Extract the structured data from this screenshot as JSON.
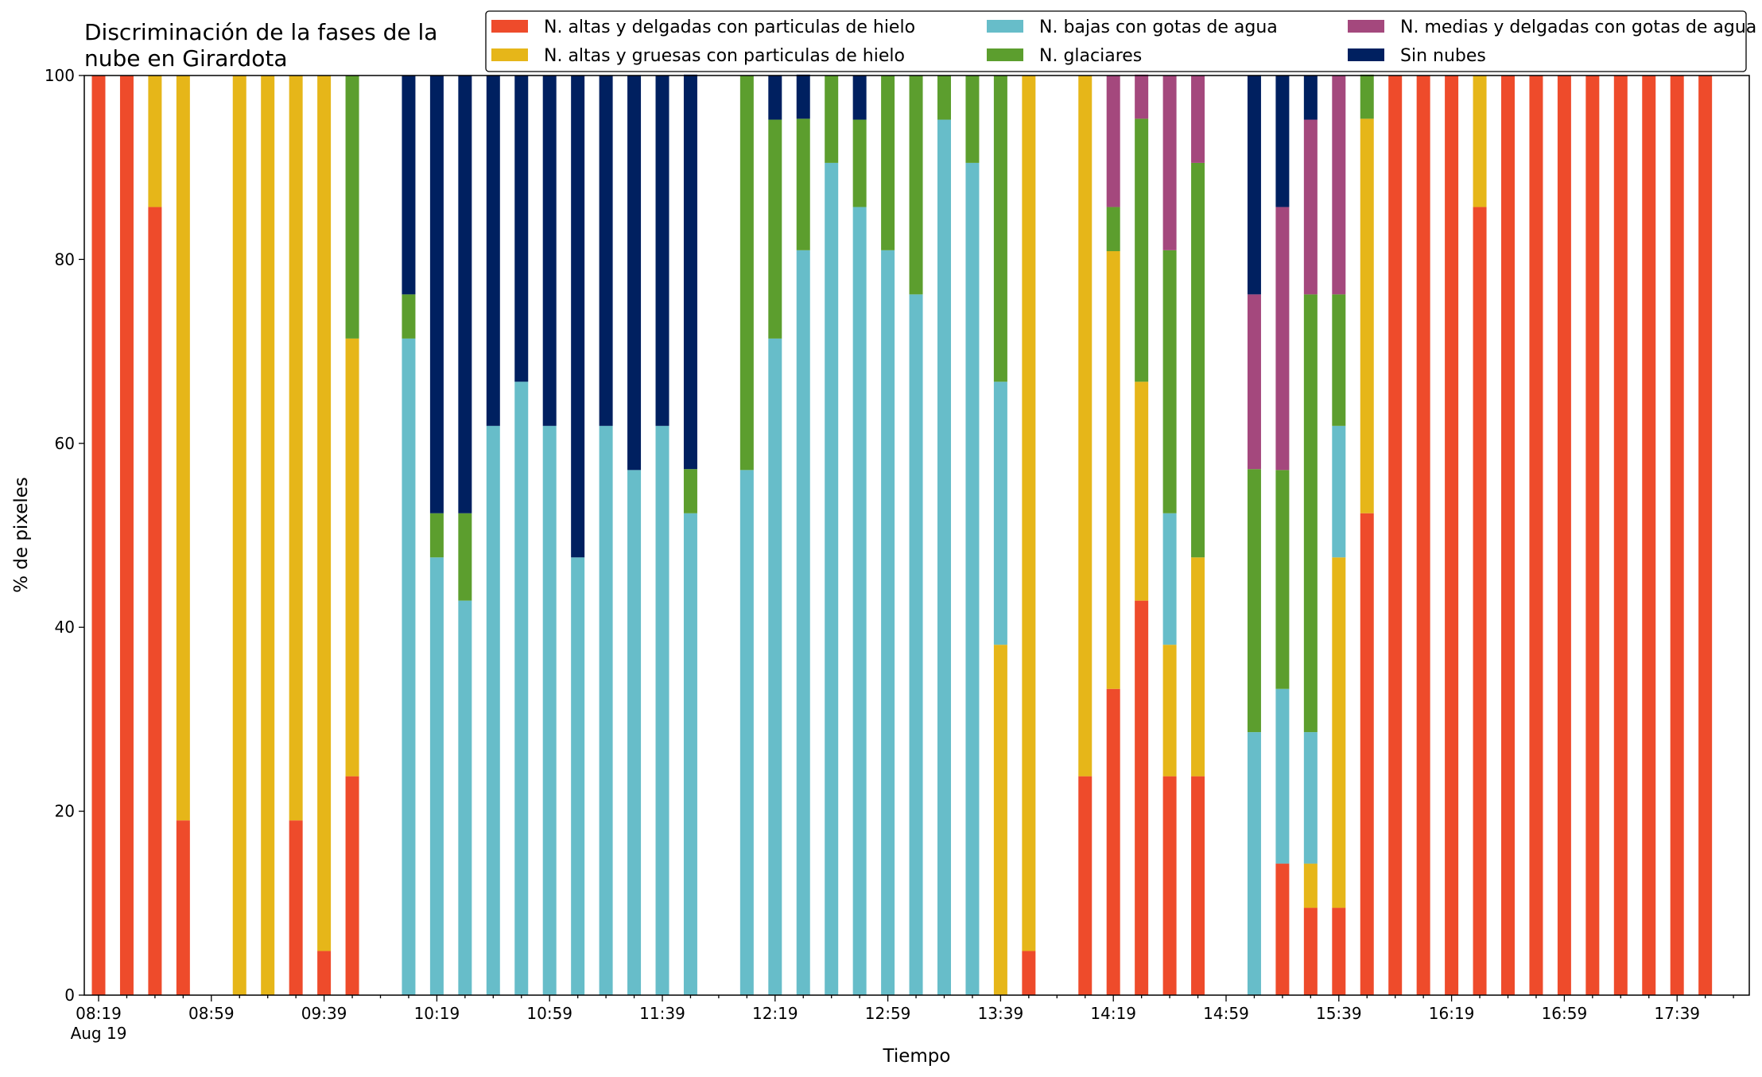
{
  "chart_data": {
    "type": "bar",
    "stacked": true,
    "title_lines": [
      "Discriminación de la fases de la",
      "nube en Girardota"
    ],
    "xlabel": "Tiempo",
    "ylabel": "% de pixeles",
    "ylim": [
      0,
      100
    ],
    "y_ticks": [
      "0",
      "20",
      "40",
      "60",
      "80",
      "100"
    ],
    "x_ticks": [
      "08:19",
      "08:59",
      "09:39",
      "10:19",
      "10:59",
      "11:39",
      "12:19",
      "12:59",
      "13:39",
      "14:19",
      "14:59",
      "15:39",
      "16:19",
      "16:59",
      "17:39"
    ],
    "x_tick_sublabel": "Aug 19",
    "slot_count": 58,
    "grid": false,
    "legend_position": "top",
    "series": [
      {
        "name": "N. altas y delgadas con particulas de hielo",
        "color": "#ee4b2b"
      },
      {
        "name": "N. altas y gruesas con particulas de hielo",
        "color": "#e6b619"
      },
      {
        "name": "N. bajas con gotas de agua",
        "color": "#67bdc9"
      },
      {
        "name": "N. glaciares",
        "color": "#5c9e2e"
      },
      {
        "name": "N. medias y delgadas con gotas de agua",
        "color": "#a4487d"
      },
      {
        "name": "Sin nubes",
        "color": "#002060"
      }
    ],
    "bars": [
      {
        "slot": 0,
        "values": [
          100,
          0,
          0,
          0,
          0,
          0
        ]
      },
      {
        "slot": 1,
        "values": [
          100,
          0,
          0,
          0,
          0,
          0
        ]
      },
      {
        "slot": 2,
        "values": [
          85.7,
          14.3,
          0,
          0,
          0,
          0
        ]
      },
      {
        "slot": 3,
        "values": [
          19,
          81,
          0,
          0,
          0,
          0
        ]
      },
      {
        "slot": 5,
        "values": [
          0,
          100,
          0,
          0,
          0,
          0
        ]
      },
      {
        "slot": 6,
        "values": [
          0,
          100,
          0,
          0,
          0,
          0
        ]
      },
      {
        "slot": 7,
        "values": [
          19,
          81,
          0,
          0,
          0,
          0
        ]
      },
      {
        "slot": 8,
        "values": [
          4.8,
          95.2,
          0,
          0,
          0,
          0
        ]
      },
      {
        "slot": 9,
        "values": [
          23.8,
          47.6,
          0,
          28.6,
          0,
          0
        ]
      },
      {
        "slot": 11,
        "values": [
          0,
          0,
          71.4,
          4.8,
          0,
          23.8
        ]
      },
      {
        "slot": 12,
        "values": [
          0,
          0,
          47.6,
          4.8,
          0,
          47.6
        ]
      },
      {
        "slot": 13,
        "values": [
          0,
          0,
          42.9,
          9.5,
          0,
          47.6
        ]
      },
      {
        "slot": 14,
        "values": [
          0,
          0,
          61.9,
          0,
          0,
          38.1
        ]
      },
      {
        "slot": 15,
        "values": [
          0,
          0,
          66.7,
          0,
          0,
          33.3
        ]
      },
      {
        "slot": 16,
        "values": [
          0,
          0,
          61.9,
          0,
          0,
          38.1
        ]
      },
      {
        "slot": 17,
        "values": [
          0,
          0,
          47.6,
          0,
          0,
          52.4
        ]
      },
      {
        "slot": 18,
        "values": [
          0,
          0,
          61.9,
          0,
          0,
          38.1
        ]
      },
      {
        "slot": 19,
        "values": [
          0,
          0,
          57.1,
          0,
          0,
          42.9
        ]
      },
      {
        "slot": 20,
        "values": [
          0,
          0,
          61.9,
          0,
          0,
          38.1
        ]
      },
      {
        "slot": 21,
        "values": [
          0,
          0,
          52.4,
          4.8,
          0,
          42.9
        ]
      },
      {
        "slot": 23,
        "values": [
          0,
          0,
          57.1,
          42.9,
          0,
          0
        ]
      },
      {
        "slot": 24,
        "values": [
          0,
          0,
          71.4,
          23.8,
          0,
          4.8
        ]
      },
      {
        "slot": 25,
        "values": [
          0,
          0,
          81,
          14.3,
          0,
          4.8
        ]
      },
      {
        "slot": 26,
        "values": [
          0,
          0,
          90.5,
          9.5,
          0,
          0
        ]
      },
      {
        "slot": 27,
        "values": [
          0,
          0,
          85.7,
          9.5,
          0,
          4.8
        ]
      },
      {
        "slot": 28,
        "values": [
          0,
          0,
          81,
          19,
          0,
          0
        ]
      },
      {
        "slot": 29,
        "values": [
          0,
          0,
          76.2,
          23.8,
          0,
          0
        ]
      },
      {
        "slot": 30,
        "values": [
          0,
          0,
          95.2,
          4.8,
          0,
          0
        ]
      },
      {
        "slot": 31,
        "values": [
          0,
          0,
          90.5,
          9.5,
          0,
          0
        ]
      },
      {
        "slot": 32,
        "values": [
          0,
          38.1,
          28.6,
          33.3,
          0,
          0
        ]
      },
      {
        "slot": 33,
        "values": [
          4.8,
          95.2,
          0,
          0,
          0,
          0
        ]
      },
      {
        "slot": 35,
        "values": [
          23.8,
          76.2,
          0,
          0,
          0,
          0
        ]
      },
      {
        "slot": 36,
        "values": [
          33.3,
          47.6,
          0,
          4.8,
          14.3,
          0
        ]
      },
      {
        "slot": 37,
        "values": [
          42.9,
          23.8,
          0,
          28.6,
          4.8,
          0
        ]
      },
      {
        "slot": 38,
        "values": [
          23.8,
          14.3,
          14.3,
          28.6,
          19,
          0
        ]
      },
      {
        "slot": 39,
        "values": [
          23.8,
          23.8,
          0,
          42.9,
          9.5,
          0
        ]
      },
      {
        "slot": 41,
        "values": [
          0,
          0,
          28.6,
          28.6,
          19,
          23.8
        ]
      },
      {
        "slot": 42,
        "values": [
          14.3,
          0,
          19,
          23.8,
          28.6,
          14.3
        ]
      },
      {
        "slot": 43,
        "values": [
          9.5,
          4.8,
          14.3,
          47.6,
          19,
          4.8
        ]
      },
      {
        "slot": 44,
        "values": [
          9.5,
          38.1,
          14.3,
          14.3,
          23.8,
          0
        ]
      },
      {
        "slot": 45,
        "values": [
          52.4,
          42.9,
          0,
          4.8,
          0,
          0
        ]
      },
      {
        "slot": 46,
        "values": [
          100,
          0,
          0,
          0,
          0,
          0
        ]
      },
      {
        "slot": 47,
        "values": [
          100,
          0,
          0,
          0,
          0,
          0
        ]
      },
      {
        "slot": 48,
        "values": [
          100,
          0,
          0,
          0,
          0,
          0
        ]
      },
      {
        "slot": 49,
        "values": [
          85.7,
          14.3,
          0,
          0,
          0,
          0
        ]
      },
      {
        "slot": 50,
        "values": [
          100,
          0,
          0,
          0,
          0,
          0
        ]
      },
      {
        "slot": 51,
        "values": [
          100,
          0,
          0,
          0,
          0,
          0
        ]
      },
      {
        "slot": 52,
        "values": [
          100,
          0,
          0,
          0,
          0,
          0
        ]
      },
      {
        "slot": 53,
        "values": [
          100,
          0,
          0,
          0,
          0,
          0
        ]
      },
      {
        "slot": 54,
        "values": [
          100,
          0,
          0,
          0,
          0,
          0
        ]
      },
      {
        "slot": 55,
        "values": [
          100,
          0,
          0,
          0,
          0,
          0
        ]
      },
      {
        "slot": 56,
        "values": [
          100,
          0,
          0,
          0,
          0,
          0
        ]
      },
      {
        "slot": 57,
        "values": [
          100,
          0,
          0,
          0,
          0,
          0
        ]
      }
    ]
  }
}
